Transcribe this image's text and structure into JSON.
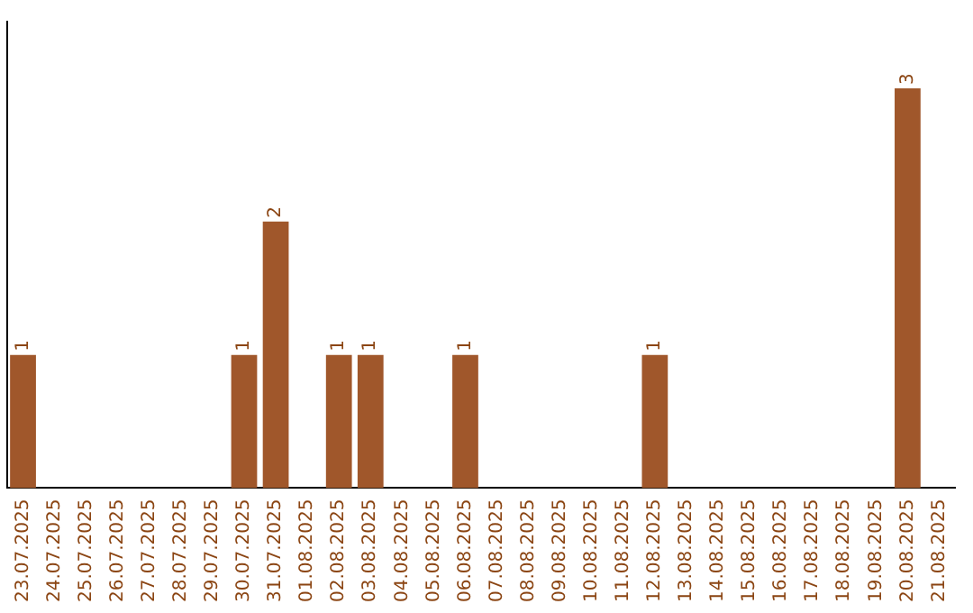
{
  "chart_data": {
    "type": "bar",
    "categories": [
      "23.07.2025",
      "24.07.2025",
      "25.07.2025",
      "26.07.2025",
      "27.07.2025",
      "28.07.2025",
      "29.07.2025",
      "30.07.2025",
      "31.07.2025",
      "01.08.2025",
      "02.08.2025",
      "03.08.2025",
      "04.08.2025",
      "05.08.2025",
      "06.08.2025",
      "07.08.2025",
      "08.08.2025",
      "09.08.2025",
      "10.08.2025",
      "11.08.2025",
      "12.08.2025",
      "13.08.2025",
      "14.08.2025",
      "15.08.2025",
      "16.08.2025",
      "17.08.2025",
      "18.08.2025",
      "19.08.2025",
      "20.08.2025",
      "21.08.2025"
    ],
    "values": [
      1,
      0,
      0,
      0,
      0,
      0,
      0,
      1,
      2,
      0,
      1,
      1,
      0,
      0,
      1,
      0,
      0,
      0,
      0,
      0,
      1,
      0,
      0,
      0,
      0,
      0,
      0,
      0,
      3,
      0
    ],
    "value_labels": [
      "1",
      null,
      null,
      null,
      null,
      null,
      null,
      "1",
      "2",
      null,
      "1",
      "1",
      null,
      null,
      "1",
      null,
      null,
      null,
      null,
      null,
      "1",
      null,
      null,
      null,
      null,
      null,
      null,
      null,
      "3",
      null
    ],
    "color": "#a0572b",
    "grid": false,
    "legend": false,
    "tick_labels": "x"
  }
}
